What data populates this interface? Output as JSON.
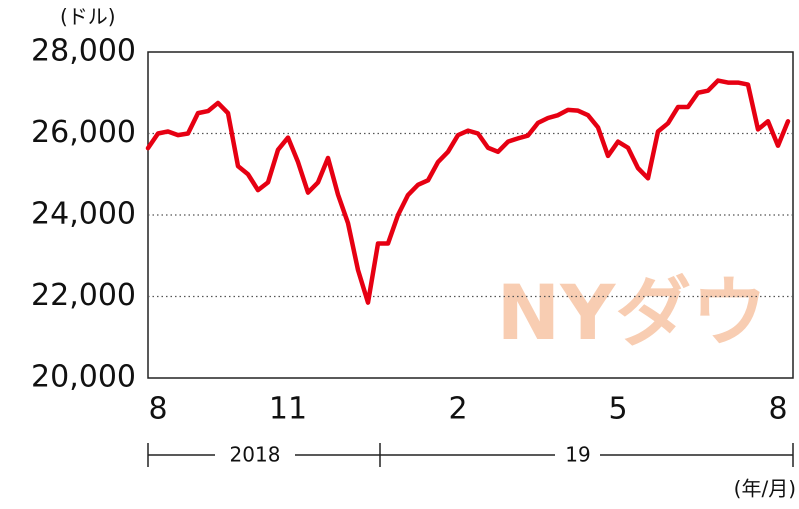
{
  "chart_data": {
    "type": "line",
    "y_unit": "(ドル)",
    "x_unit": "(年/月)",
    "watermark": "NYダウ",
    "categories": [
      null,
      "8",
      null,
      null,
      null,
      null,
      null,
      null,
      null,
      null,
      null,
      null,
      null,
      null,
      "11",
      null,
      null,
      null,
      null,
      null,
      null,
      null,
      null,
      null,
      null,
      null,
      null,
      null,
      null,
      null,
      null,
      "2",
      null,
      null,
      null,
      null,
      null,
      null,
      null,
      null,
      null,
      null,
      null,
      null,
      null,
      null,
      null,
      "5",
      null,
      null,
      null,
      null,
      null,
      null,
      null,
      null,
      null,
      null,
      null,
      null,
      null,
      null,
      null,
      "8",
      null
    ],
    "x_groups": [
      "2018",
      "19"
    ],
    "series": [
      {
        "color": "#e60012",
        "values": [
          25640,
          26000,
          26050,
          25960,
          26000,
          26500,
          26550,
          26750,
          26500,
          25200,
          25000,
          24610,
          24800,
          25600,
          25900,
          25300,
          24550,
          24800,
          25400,
          24500,
          23800,
          22650,
          21850,
          23300,
          23300,
          24000,
          24490,
          24740,
          24850,
          25300,
          25550,
          25960,
          26070,
          26000,
          25650,
          25550,
          25800,
          25880,
          25950,
          26260,
          26380,
          26450,
          26580,
          26560,
          26450,
          26150,
          25450,
          25800,
          25650,
          25150,
          24900,
          26050,
          26250,
          26650,
          26650,
          27000,
          27050,
          27300,
          27250,
          27250,
          27200,
          26100,
          26300,
          25700,
          26300
        ]
      }
    ],
    "ylim": [
      20000,
      28000
    ],
    "yticks": [
      {
        "value": 20000,
        "label": "20,000"
      },
      {
        "value": 22000,
        "label": "22,000"
      },
      {
        "value": 24000,
        "label": "24,000"
      },
      {
        "value": 26000,
        "label": "26,000"
      },
      {
        "value": 28000,
        "label": "28,000"
      }
    ],
    "grid": true
  }
}
